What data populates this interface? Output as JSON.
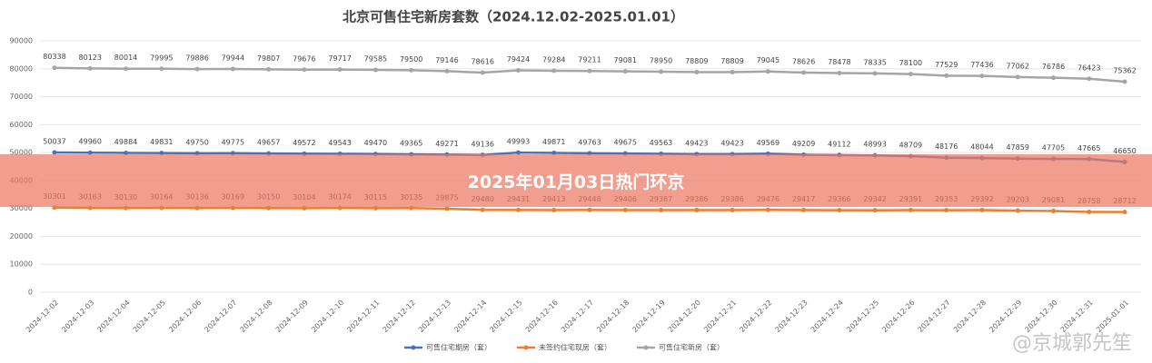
{
  "chart_data": {
    "type": "line",
    "title": "北京可售住宅新房套数（2024.12.02-2025.01.01）",
    "categories": [
      "2024-12-02",
      "2024-12-03",
      "2024-12-04",
      "2024-12-05",
      "2024-12-06",
      "2024-12-07",
      "2024-12-08",
      "2024-12-09",
      "2024-12-10",
      "2024-12-11",
      "2024-12-12",
      "2024-12-13",
      "2024-12-14",
      "2024-12-15",
      "2024-12-16",
      "2024-12-17",
      "2024-12-18",
      "2024-12-19",
      "2024-12-20",
      "2024-12-21",
      "2024-12-22",
      "2024-12-23",
      "2024-12-24",
      "2024-12-25",
      "2024-12-26",
      "2024-12-27",
      "2024-12-28",
      "2024-12-29",
      "2024-12-30",
      "2024-12-31",
      "2025-01-01"
    ],
    "series": [
      {
        "name": "可售住宅期房（套）",
        "color": "#4472c4",
        "values": [
          50037,
          49960,
          49884,
          49831,
          49750,
          49775,
          49657,
          49572,
          49543,
          49470,
          49365,
          49271,
          49136,
          49993,
          49871,
          49763,
          49675,
          49563,
          49423,
          49423,
          49569,
          49209,
          49112,
          48993,
          48709,
          48176,
          48044,
          47859,
          47705,
          47665,
          46650
        ]
      },
      {
        "name": "未签约住宅现房（套）",
        "color": "#ed7d31",
        "values": [
          30301,
          30163,
          30130,
          30164,
          30136,
          30169,
          30150,
          30104,
          30174,
          30115,
          30135,
          29875,
          29480,
          29431,
          29413,
          29448,
          29406,
          29387,
          29386,
          29386,
          29476,
          29417,
          29366,
          29342,
          29391,
          29353,
          29392,
          29203,
          29081,
          28758,
          28712
        ]
      },
      {
        "name": "可售住宅新房（套）",
        "color": "#a5a5a5",
        "values": [
          80338,
          80123,
          80014,
          79995,
          79886,
          79944,
          79807,
          79676,
          79717,
          79585,
          79500,
          79146,
          78616,
          79424,
          79284,
          79211,
          79081,
          78950,
          78809,
          78809,
          79045,
          78626,
          78478,
          78335,
          78100,
          77529,
          77436,
          77062,
          76786,
          76423,
          75362
        ]
      }
    ],
    "ylim": [
      0,
      90000
    ],
    "yticks": [
      0,
      10000,
      20000,
      30000,
      40000,
      50000,
      60000,
      70000,
      80000,
      90000
    ],
    "grid": true,
    "legend": "bottom"
  },
  "banner": "2025年01月03日热门环京",
  "watermark": "@京城郭先笙"
}
